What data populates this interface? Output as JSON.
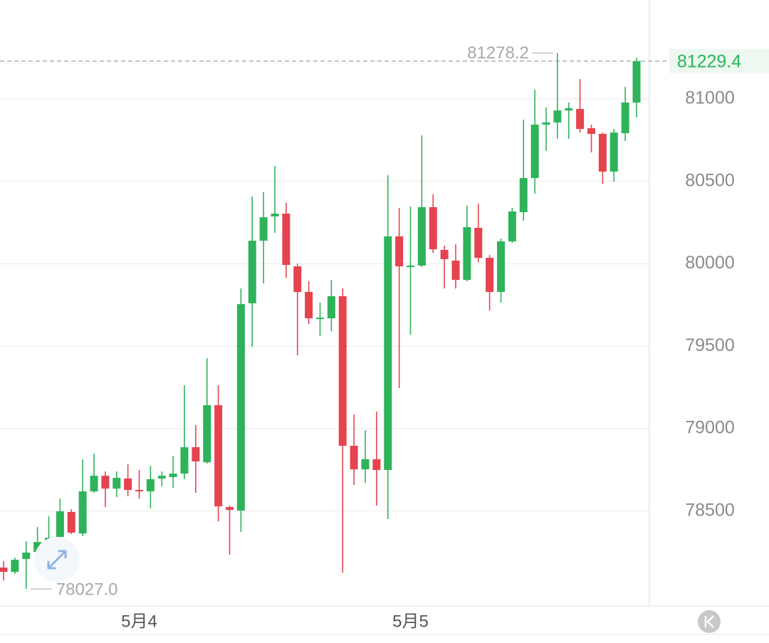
{
  "chart_data": {
    "type": "candlestick",
    "categories": [
      null,
      null,
      null,
      null,
      null,
      null,
      null,
      null,
      null,
      null,
      null,
      null,
      "5月4",
      null,
      null,
      null,
      null,
      null,
      null,
      null,
      null,
      null,
      null,
      null,
      null,
      null,
      null,
      null,
      null,
      null,
      null,
      null,
      null,
      null,
      null,
      null,
      "5月5",
      null,
      null,
      null,
      null,
      null,
      null,
      null,
      null,
      null,
      null,
      null,
      null,
      null,
      null,
      null,
      null,
      null,
      null,
      null,
      null
    ],
    "open": [
      78157,
      78131,
      78209,
      78252,
      78317,
      78343,
      78494,
      78364,
      78619,
      78714,
      78636,
      78697,
      78628,
      78619,
      78697,
      78706,
      78727,
      78887,
      78796,
      79142,
      78524,
      78503,
      79760,
      80140,
      80287,
      80304,
      79984,
      79829,
      79669,
      79669,
      79803,
      78896,
      78753,
      78814,
      78749,
      80166,
      79980,
      79989,
      80343,
      80084,
      80019,
      79902,
      80218,
      80036,
      79829,
      80136,
      80313,
      80520,
      80844,
      80857,
      80930,
      80939,
      80822,
      80788,
      80559,
      80792,
      80978
    ],
    "high": [
      78196,
      78217,
      78317,
      78403,
      78468,
      78576,
      78511,
      78814,
      78848,
      78740,
      78740,
      78783,
      78749,
      78775,
      78740,
      78835,
      79263,
      79021,
      79427,
      79263,
      78533,
      79850,
      80408,
      80434,
      80593,
      80369,
      80002,
      79894,
      79764,
      79902,
      79850,
      79086,
      78991,
      79103,
      80537,
      80339,
      80347,
      80779,
      80421,
      80110,
      80118,
      80352,
      80364,
      80053,
      80153,
      80339,
      80874,
      81056,
      80948,
      81278.2,
      80978,
      81120,
      80844,
      80796,
      80818,
      81073,
      81250
    ],
    "low": [
      78079,
      78118,
      78027,
      78239,
      78295,
      78295,
      78360,
      78347,
      78611,
      78524,
      78585,
      78589,
      78576,
      78516,
      78649,
      78641,
      78693,
      78611,
      78788,
      78438,
      78235,
      78373,
      79496,
      79881,
      80187,
      79915,
      79444,
      79634,
      79561,
      79591,
      78127,
      78658,
      78671,
      78533,
      78451,
      79246,
      79570,
      79980,
      80066,
      79850,
      79850,
      79894,
      80010,
      79716,
      79764,
      80127,
      80261,
      80425,
      80684,
      80758,
      80758,
      80796,
      80676,
      80485,
      80498,
      80745,
      80887
    ],
    "close": [
      78131,
      78204,
      78248,
      78312,
      78338,
      78498,
      78369,
      78619,
      78714,
      78636,
      78701,
      78628,
      78619,
      78693,
      78714,
      78727,
      78887,
      78801,
      79142,
      78528,
      78507,
      79755,
      80140,
      80282,
      80304,
      79993,
      79829,
      79669,
      79673,
      79803,
      78896,
      78753,
      78814,
      78749,
      80166,
      79984,
      79989,
      80343,
      80088,
      80028,
      79902,
      80222,
      80036,
      79829,
      80136,
      80317,
      80520,
      80844,
      80857,
      80930,
      80943,
      80818,
      80788,
      80559,
      80796,
      80978,
      81229.4
    ],
    "up_color": "#2eb35a",
    "down_color": "#e5434f",
    "ylim": [
      77924,
      81600
    ],
    "yticks": [
      78500,
      79000,
      79500,
      80000,
      80500,
      81000
    ],
    "grid": true,
    "high_marker": 81278.2,
    "low_marker": {
      "value": 78027,
      "label": "78027.0"
    },
    "last_price": 81229.4
  }
}
